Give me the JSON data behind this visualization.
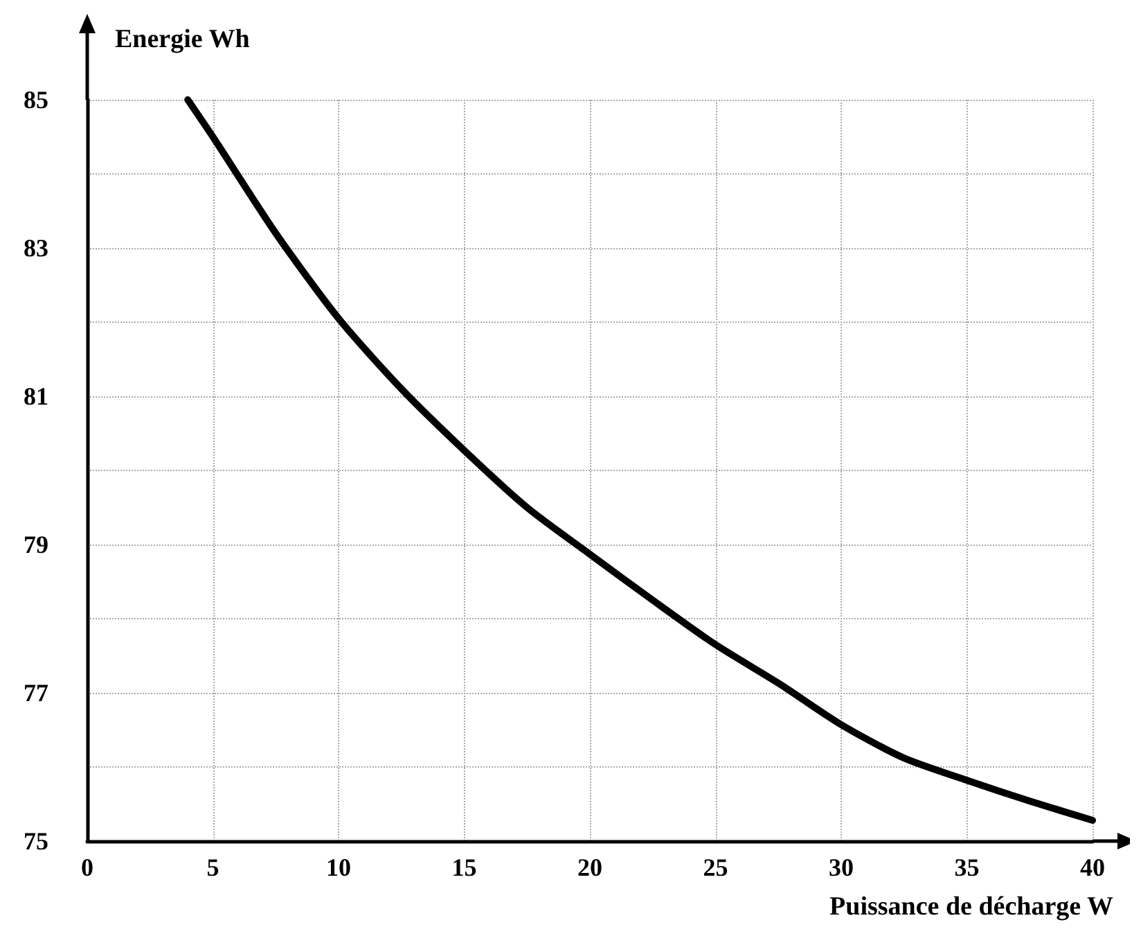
{
  "chart_data": {
    "type": "line",
    "xlabel": "Puissance de décharge W",
    "ylabel": "Energie Wh",
    "x": [
      4,
      5,
      7.5,
      10,
      12.5,
      15,
      17.5,
      20,
      22.5,
      25,
      27.5,
      30,
      32.5,
      35,
      37.5,
      40
    ],
    "series": [
      {
        "color": "#000000",
        "values": [
          85,
          84.5,
          83.2,
          82.05,
          81.1,
          80.27,
          79.5,
          78.87,
          78.25,
          77.65,
          77.13,
          76.57,
          76.12,
          75.82,
          75.54,
          75.28
        ]
      }
    ],
    "xlim": [
      0,
      40
    ],
    "xticks": [
      0,
      5,
      10,
      15,
      20,
      25,
      30,
      35,
      40
    ],
    "ylim": [
      75,
      85
    ],
    "yticks": [
      75,
      {
        "value": 76,
        "label": null
      },
      77,
      {
        "value": 78,
        "label": null
      },
      79,
      {
        "value": 80,
        "label": null
      },
      81,
      {
        "value": 82,
        "label": null
      },
      83,
      {
        "value": 84,
        "label": null
      },
      85
    ],
    "grid": true,
    "marker": "none",
    "line_style": "solid"
  }
}
